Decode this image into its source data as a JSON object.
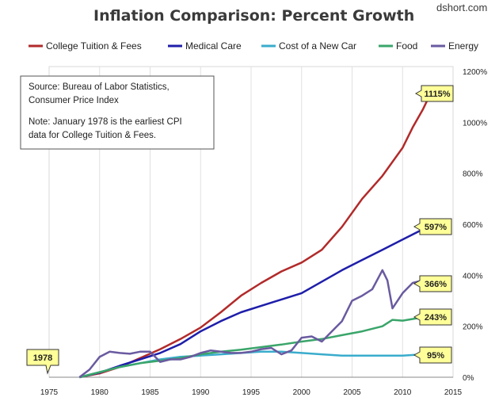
{
  "chart_data": {
    "type": "line",
    "title": "Inflation Comparison: Percent Growth",
    "brand": "dshort.com",
    "xlim": [
      1975,
      2015
    ],
    "ylim": [
      0,
      1200
    ],
    "x_ticks": [
      1975,
      1980,
      1985,
      1990,
      1995,
      2000,
      2005,
      2010,
      2015
    ],
    "y_ticks": [
      "0%",
      "200%",
      "400%",
      "600%",
      "800%",
      "1000%",
      "1200%"
    ],
    "y_tick_values": [
      0,
      200,
      400,
      600,
      800,
      1000,
      1200
    ],
    "legend": {
      "placement": "top"
    },
    "grid": "vertical",
    "series": [
      {
        "name": "College Tuition & Fees",
        "color": "#b22a2a",
        "points": [
          [
            1978,
            0
          ],
          [
            1980,
            15
          ],
          [
            1982,
            40
          ],
          [
            1984,
            75
          ],
          [
            1986,
            110
          ],
          [
            1988,
            150
          ],
          [
            1990,
            195
          ],
          [
            1992,
            255
          ],
          [
            1994,
            320
          ],
          [
            1996,
            370
          ],
          [
            1998,
            415
          ],
          [
            2000,
            450
          ],
          [
            2002,
            500
          ],
          [
            2004,
            590
          ],
          [
            2006,
            700
          ],
          [
            2008,
            790
          ],
          [
            2010,
            900
          ],
          [
            2011,
            980
          ],
          [
            2012,
            1050
          ],
          [
            2012.8,
            1115
          ]
        ]
      },
      {
        "name": "Medical Care",
        "color": "#1e1eaa",
        "points": [
          [
            1978,
            0
          ],
          [
            1980,
            18
          ],
          [
            1982,
            45
          ],
          [
            1984,
            70
          ],
          [
            1986,
            95
          ],
          [
            1988,
            130
          ],
          [
            1990,
            180
          ],
          [
            1992,
            220
          ],
          [
            1994,
            255
          ],
          [
            1996,
            280
          ],
          [
            1998,
            305
          ],
          [
            2000,
            330
          ],
          [
            2002,
            375
          ],
          [
            2004,
            420
          ],
          [
            2006,
            460
          ],
          [
            2008,
            500
          ],
          [
            2010,
            540
          ],
          [
            2012,
            580
          ],
          [
            2012.8,
            597
          ]
        ]
      },
      {
        "name": "Cost of a New Car",
        "color": "#3aaccc",
        "points": [
          [
            1978,
            0
          ],
          [
            1980,
            20
          ],
          [
            1982,
            40
          ],
          [
            1984,
            55
          ],
          [
            1986,
            70
          ],
          [
            1988,
            80
          ],
          [
            1990,
            85
          ],
          [
            1992,
            90
          ],
          [
            1994,
            95
          ],
          [
            1996,
            100
          ],
          [
            1998,
            100
          ],
          [
            2000,
            95
          ],
          [
            2002,
            90
          ],
          [
            2004,
            85
          ],
          [
            2006,
            85
          ],
          [
            2008,
            85
          ],
          [
            2010,
            85
          ],
          [
            2012,
            90
          ],
          [
            2012.8,
            95
          ]
        ]
      },
      {
        "name": "Food",
        "color": "#3aa56a",
        "points": [
          [
            1978,
            0
          ],
          [
            1980,
            20
          ],
          [
            1982,
            40
          ],
          [
            1984,
            55
          ],
          [
            1986,
            65
          ],
          [
            1988,
            75
          ],
          [
            1990,
            90
          ],
          [
            1992,
            100
          ],
          [
            1994,
            108
          ],
          [
            1996,
            118
          ],
          [
            1998,
            128
          ],
          [
            2000,
            140
          ],
          [
            2002,
            150
          ],
          [
            2004,
            165
          ],
          [
            2006,
            180
          ],
          [
            2008,
            200
          ],
          [
            2009,
            225
          ],
          [
            2010,
            222
          ],
          [
            2012,
            235
          ],
          [
            2012.8,
            243
          ]
        ]
      },
      {
        "name": "Energy",
        "color": "#6a5aa0",
        "points": [
          [
            1978,
            0
          ],
          [
            1979,
            30
          ],
          [
            1980,
            80
          ],
          [
            1981,
            100
          ],
          [
            1982,
            95
          ],
          [
            1983,
            92
          ],
          [
            1984,
            100
          ],
          [
            1985,
            100
          ],
          [
            1986,
            60
          ],
          [
            1987,
            70
          ],
          [
            1988,
            70
          ],
          [
            1989,
            80
          ],
          [
            1990,
            95
          ],
          [
            1991,
            105
          ],
          [
            1992,
            100
          ],
          [
            1993,
            95
          ],
          [
            1994,
            95
          ],
          [
            1995,
            100
          ],
          [
            1996,
            110
          ],
          [
            1997,
            115
          ],
          [
            1998,
            90
          ],
          [
            1999,
            105
          ],
          [
            2000,
            155
          ],
          [
            2001,
            160
          ],
          [
            2002,
            140
          ],
          [
            2003,
            180
          ],
          [
            2004,
            220
          ],
          [
            2005,
            300
          ],
          [
            2006,
            320
          ],
          [
            2007,
            345
          ],
          [
            2008,
            420
          ],
          [
            2008.5,
            380
          ],
          [
            2009,
            270
          ],
          [
            2010,
            330
          ],
          [
            2011,
            370
          ],
          [
            2012,
            380
          ],
          [
            2012.8,
            366
          ]
        ]
      }
    ],
    "callouts": [
      {
        "text": "1115%",
        "series": "College Tuition & Fees"
      },
      {
        "text": "597%",
        "series": "Medical Care"
      },
      {
        "text": "366%",
        "series": "Energy"
      },
      {
        "text": "243%",
        "series": "Food"
      },
      {
        "text": "95%",
        "series": "Cost of a New Car"
      },
      {
        "text": "1978",
        "series": "start"
      }
    ],
    "annotation_lines": [
      "Source: Bureau of Labor Statistics,",
      "Consumer Price Index",
      "Note: January 1978  is the earliest CPI",
      "data for College Tuition & Fees."
    ]
  }
}
